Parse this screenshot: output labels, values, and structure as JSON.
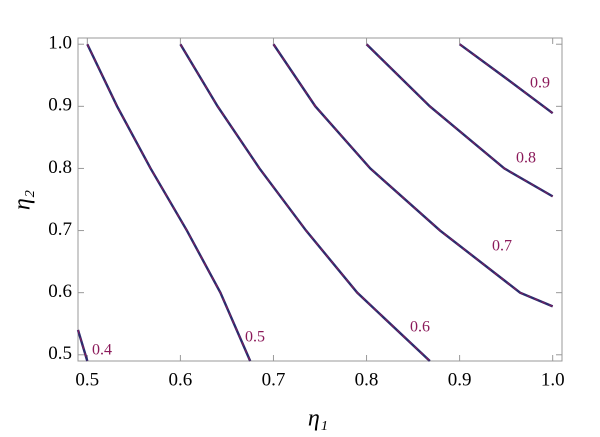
{
  "chart_data": {
    "type": "contour",
    "x_label": "η₁",
    "y_label": "η₂",
    "xlim": [
      0.49,
      1.01
    ],
    "ylim": [
      0.49,
      1.01
    ],
    "xticks": [
      0.5,
      0.6,
      0.7,
      0.8,
      0.9,
      {
        "value": 1,
        "label": "1.0"
      }
    ],
    "yticks": [
      0.5,
      0.6,
      0.7,
      0.8,
      0.9,
      {
        "value": 1,
        "label": "1.0"
      }
    ],
    "grid": false,
    "color": "#2b2c6e",
    "label_color": "#8b1a5a",
    "series": [
      {
        "name": "0.4",
        "x": [
          0.49,
          0.495,
          0.5
        ],
        "values": [
          0.54,
          0.515,
          0.49
        ]
      },
      {
        "name": "0.5",
        "x": [
          0.5,
          0.532,
          0.568,
          0.607,
          0.643,
          0.675
        ],
        "values": [
          1.0,
          0.9,
          0.8,
          0.7,
          0.6,
          0.49
        ]
      },
      {
        "name": "0.6",
        "x": [
          0.6,
          0.64,
          0.685,
          0.735,
          0.79,
          0.868
        ],
        "values": [
          1.0,
          0.9,
          0.8,
          0.7,
          0.6,
          0.49
        ]
      },
      {
        "name": "0.7",
        "x": [
          0.7,
          0.745,
          0.804,
          0.879,
          0.965,
          1.0
        ],
        "values": [
          1.0,
          0.9,
          0.8,
          0.7,
          0.6,
          0.578
        ]
      },
      {
        "name": "0.8",
        "x": [
          0.8,
          0.868,
          0.948,
          1.0
        ],
        "values": [
          1.0,
          0.9,
          0.8,
          0.755
        ]
      },
      {
        "name": "0.9",
        "x": [
          0.9,
          0.95,
          1.0
        ],
        "values": [
          1.0,
          0.945,
          0.889
        ]
      }
    ]
  }
}
